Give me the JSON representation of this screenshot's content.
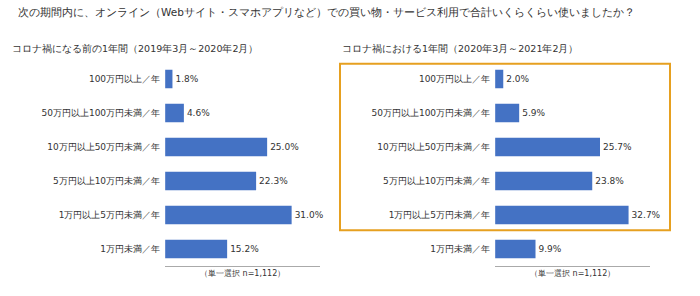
{
  "chart_data": [
    {
      "type": "bar",
      "title": "次の期間内に、オンライン（Webサイト・スマホアプリなど）での買い物・サービス利用で合計いくらくらい使いましたか？",
      "subtitle": "コロナ禍になる前の1年間（2019年3月～2020年2月）",
      "xlabel": "（単一選択 n=1,112）",
      "orientation": "horizontal",
      "categories": [
        "100万円以上／年",
        "50万円以上100万円未満／年",
        "10万円以上50万円未満／年",
        "5万円以上10万円未満／年",
        "1万円以上5万円未満／年",
        "1万円未満／年"
      ],
      "values": [
        1.8,
        4.6,
        25.0,
        22.3,
        31.0,
        15.2
      ],
      "value_labels": [
        "1.8%",
        "4.6%",
        "25.0%",
        "22.3%",
        "31.0%",
        "15.2%"
      ],
      "data_labels": true,
      "color": "#4472C4",
      "xlim": [
        0,
        38
      ],
      "xticks": [],
      "tick_labels": "y",
      "grid": false
    },
    {
      "type": "bar",
      "subtitle": "コロナ禍における1年間（2020年3月～2021年2月）",
      "xlabel": "（単一選択 n=1,112）",
      "orientation": "horizontal",
      "categories": [
        "100万円以上／年",
        "50万円以上100万円未満／年",
        "10万円以上50万円未満／年",
        "5万円以上10万円未満／年",
        "1万円以上5万円未満／年",
        "1万円未満／年"
      ],
      "values": [
        2.0,
        5.9,
        25.7,
        23.8,
        32.7,
        9.9
      ],
      "value_labels": [
        "2.0%",
        "5.9%",
        "25.7%",
        "23.8%",
        "32.7%",
        "9.9%"
      ],
      "data_labels": true,
      "color": "#4472C4",
      "xlim": [
        0,
        38
      ],
      "xticks": [],
      "tick_labels": "y",
      "grid": false
    }
  ]
}
